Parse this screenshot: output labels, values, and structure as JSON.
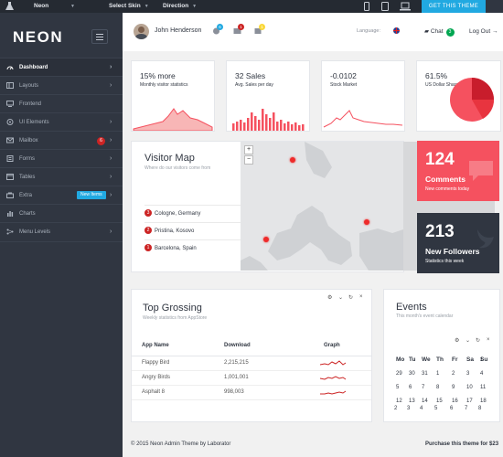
{
  "topbar": {
    "app_name": "Neon",
    "select_skin": "Select Skin",
    "direction": "Direction",
    "cta": "GET THIS THEME"
  },
  "sidebar": {
    "logo": "NEON",
    "items": [
      {
        "label": "Dashboard",
        "icon": "gauge-icon"
      },
      {
        "label": "Layouts",
        "icon": "layout-icon"
      },
      {
        "label": "Frontend",
        "icon": "monitor-icon"
      },
      {
        "label": "UI Elements",
        "icon": "target-icon"
      },
      {
        "label": "Mailbox",
        "icon": "mail-icon",
        "badge": "6"
      },
      {
        "label": "Forms",
        "icon": "doc-icon"
      },
      {
        "label": "Tables",
        "icon": "window-icon"
      },
      {
        "label": "Extra",
        "icon": "bag-icon",
        "badge": "New Items"
      },
      {
        "label": "Charts",
        "icon": "bar-chart-icon"
      },
      {
        "label": "Menu Levels",
        "icon": "flow-icon"
      }
    ]
  },
  "header": {
    "user_name": "John Henderson",
    "badges": [
      "6",
      "1",
      "1"
    ],
    "language_label": "Language:",
    "chat_label": "Chat",
    "chat_count": "3",
    "logout": "Log Out"
  },
  "stats": [
    {
      "value": "15% more",
      "label": "Monthly visitor statistics"
    },
    {
      "value": "32 Sales",
      "label": "Avg. Sales per day"
    },
    {
      "value": "-0.0102",
      "label": "Stock Market"
    },
    {
      "value": "61.5%",
      "label": "US Dollar Share"
    }
  ],
  "visitor_map": {
    "title": "Visitor Map",
    "subtitle": "Where do our visitors come from",
    "cities": [
      {
        "num": "3",
        "name": "Cologne, Germany"
      },
      {
        "num": "2",
        "name": "Pristina, Kosovo"
      },
      {
        "num": "1",
        "name": "Barcelona, Spain"
      }
    ]
  },
  "tiles": {
    "comments": {
      "count": "124",
      "label": "Comments",
      "sub": "New comments today"
    },
    "followers": {
      "count": "213",
      "label": "New Followers",
      "sub": "Statistics this week"
    }
  },
  "grossing": {
    "title": "Top Grossing",
    "subtitle": "Weekly statistics from AppStore",
    "headers": [
      "App Name",
      "Download",
      "Graph"
    ],
    "rows": [
      {
        "name": "Flappy Bird",
        "download": "2,215,215"
      },
      {
        "name": "Angry Birds",
        "download": "1,001,001"
      },
      {
        "name": "Asphalt 8",
        "download": "998,003"
      }
    ]
  },
  "events": {
    "title": "Events",
    "subtitle": "This month's event calendar",
    "days_of_week": [
      "Mo",
      "Tu",
      "We",
      "Th",
      "Fr",
      "Sa",
      "Su"
    ],
    "weeks": [
      [
        "",
        "",
        "",
        "",
        "",
        "",
        "1"
      ],
      [
        "29",
        "30",
        "31",
        "1",
        "2",
        "3",
        "4"
      ],
      [
        "5",
        "6",
        "7",
        "8",
        "9",
        "10",
        "11"
      ],
      [
        "12",
        "13",
        "14",
        "15",
        "16",
        "17",
        "18"
      ],
      [
        "2",
        "3",
        "4",
        "5",
        "6",
        "7",
        "8"
      ]
    ]
  },
  "footer": {
    "copyright": "© 2015 Neon Admin Theme by Laborator",
    "purchase": "Purchase this theme for $23"
  },
  "colors": {
    "sidebar": "#303641",
    "accent_red": "#f5515f",
    "accent_blue": "#21a9e1",
    "green": "#00a651"
  }
}
